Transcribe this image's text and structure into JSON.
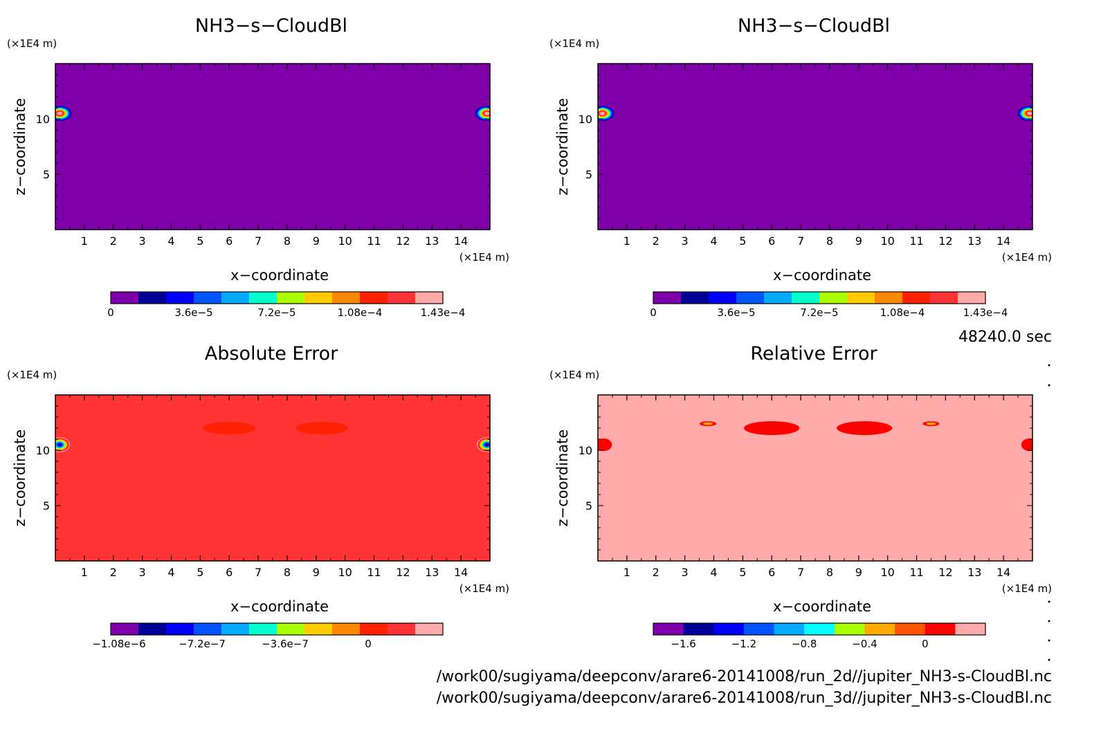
{
  "time_label": "48240.0 sec",
  "files": [
    "/work00/sugiyama/deepconv/arare6-20141008/run_2d//jupiter_NH3-s-CloudBl.nc",
    "/work00/sugiyama/deepconv/arare6-20141008/run_3d//jupiter_NH3-s-CloudBl.nc"
  ],
  "chart_data": [
    {
      "type": "heatmap",
      "title": "NH3−s−CloudBl",
      "xlabel": "x−coordinate",
      "ylabel": "z−coordinate",
      "x_unit": "(×1E4 m)",
      "y_unit": "(×1E4 m)",
      "xlim": [
        0,
        15
      ],
      "ylim": [
        0,
        15
      ],
      "x_ticks": [
        1,
        2,
        3,
        4,
        5,
        6,
        7,
        8,
        9,
        10,
        11,
        12,
        13,
        14
      ],
      "y_ticks": [
        5,
        10
      ],
      "background_color": "#7f00aa",
      "levels_colors": [
        "#7f00aa",
        "#000099",
        "#0000ff",
        "#0055ff",
        "#00aaff",
        "#00ffcc",
        "#aaff00",
        "#ffcc00",
        "#ff8800",
        "#ff2200",
        "#ff3333",
        "#ffaaaa"
      ],
      "colorbar_ticks": [
        "0",
        "3.6e−5",
        "7.2e−5",
        "1.08e−4",
        "1.43e−4"
      ],
      "colorbar_tick_positions": [
        0,
        3,
        6,
        9,
        12
      ],
      "features": [
        {
          "x": 0.15,
          "z": 10.5,
          "peak": 0.000143
        },
        {
          "x": 14.9,
          "z": 10.5,
          "peak": 0.000143
        }
      ]
    },
    {
      "type": "heatmap",
      "title": "NH3−s−CloudBl",
      "xlabel": "x−coordinate",
      "ylabel": "z−coordinate",
      "x_unit": "(×1E4 m)",
      "y_unit": "(×1E4 m)",
      "xlim": [
        0,
        15
      ],
      "ylim": [
        0,
        15
      ],
      "x_ticks": [
        1,
        2,
        3,
        4,
        5,
        6,
        7,
        8,
        9,
        10,
        11,
        12,
        13,
        14
      ],
      "y_ticks": [
        5,
        10
      ],
      "background_color": "#7f00aa",
      "levels_colors": [
        "#7f00aa",
        "#000099",
        "#0000ff",
        "#0055ff",
        "#00aaff",
        "#00ffcc",
        "#aaff00",
        "#ffcc00",
        "#ff8800",
        "#ff2200",
        "#ff3333",
        "#ffaaaa"
      ],
      "colorbar_ticks": [
        "0",
        "3.6e−5",
        "7.2e−5",
        "1.08e−4",
        "1.43e−4"
      ],
      "colorbar_tick_positions": [
        0,
        3,
        6,
        9,
        12
      ],
      "features": [
        {
          "x": 0.15,
          "z": 10.5,
          "peak": 0.000143
        },
        {
          "x": 14.9,
          "z": 10.5,
          "peak": 0.000143
        }
      ]
    },
    {
      "type": "heatmap",
      "title": "Absolute Error",
      "xlabel": "x−coordinate",
      "ylabel": "z−coordinate",
      "x_unit": "(×1E4 m)",
      "y_unit": "(×1E4 m)",
      "xlim": [
        0,
        15
      ],
      "ylim": [
        0,
        15
      ],
      "x_ticks": [
        1,
        2,
        3,
        4,
        5,
        6,
        7,
        8,
        9,
        10,
        11,
        12,
        13,
        14
      ],
      "y_ticks": [
        5,
        10
      ],
      "background_color": "#ff3333",
      "levels_colors": [
        "#7f00aa",
        "#000099",
        "#0000ff",
        "#0055ff",
        "#00aaff",
        "#00ffcc",
        "#aaff00",
        "#ffcc00",
        "#ff8800",
        "#ff2200",
        "#ff3333",
        "#ffaaaa"
      ],
      "colorbar_ticks": [
        "−1.08e−6",
        "−7.2e−7",
        "−3.6e−7",
        "0"
      ],
      "colorbar_tick_positions": [
        0.3,
        3.3,
        6.3,
        9.3
      ],
      "features": [
        {
          "x": 0.15,
          "z": 10.5,
          "peak": -1.08e-06
        },
        {
          "x": 14.9,
          "z": 10.5,
          "peak": -1.08e-06
        },
        {
          "x": 6.0,
          "z": 12.0,
          "peak": -1.2e-07
        },
        {
          "x": 9.2,
          "z": 12.0,
          "peak": -1.2e-07
        }
      ]
    },
    {
      "type": "heatmap",
      "title": "Relative Error",
      "xlabel": "x−coordinate",
      "ylabel": "z−coordinate",
      "x_unit": "(×1E4 m)",
      "y_unit": "(×1E4 m)",
      "xlim": [
        0,
        15
      ],
      "ylim": [
        0,
        15
      ],
      "x_ticks": [
        1,
        2,
        3,
        4,
        5,
        6,
        7,
        8,
        9,
        10,
        11,
        12,
        13,
        14
      ],
      "y_ticks": [
        5,
        10
      ],
      "background_color": "#ffaaaa",
      "levels_colors": [
        "#7f00aa",
        "#000099",
        "#0000ff",
        "#0055ff",
        "#00aaff",
        "#00ffff",
        "#aaff00",
        "#ffaa00",
        "#ff5500",
        "#ff0000",
        "#ffaaaa"
      ],
      "colorbar_ticks": [
        "−1.6",
        "−1.2",
        "−0.8",
        "−0.4",
        "0"
      ],
      "colorbar_tick_positions": [
        1,
        3,
        5,
        7,
        9
      ],
      "features": [
        {
          "x": 0.2,
          "z": 10.5,
          "peak": -0.2
        },
        {
          "x": 14.9,
          "z": 10.5,
          "peak": -0.2
        },
        {
          "x": 6.0,
          "z": 12.0,
          "peak": -0.2
        },
        {
          "x": 9.2,
          "z": 12.0,
          "peak": -0.2
        },
        {
          "x": 3.8,
          "z": 12.4,
          "peak": -0.5
        },
        {
          "x": 11.5,
          "z": 12.4,
          "peak": -0.5
        }
      ]
    }
  ]
}
